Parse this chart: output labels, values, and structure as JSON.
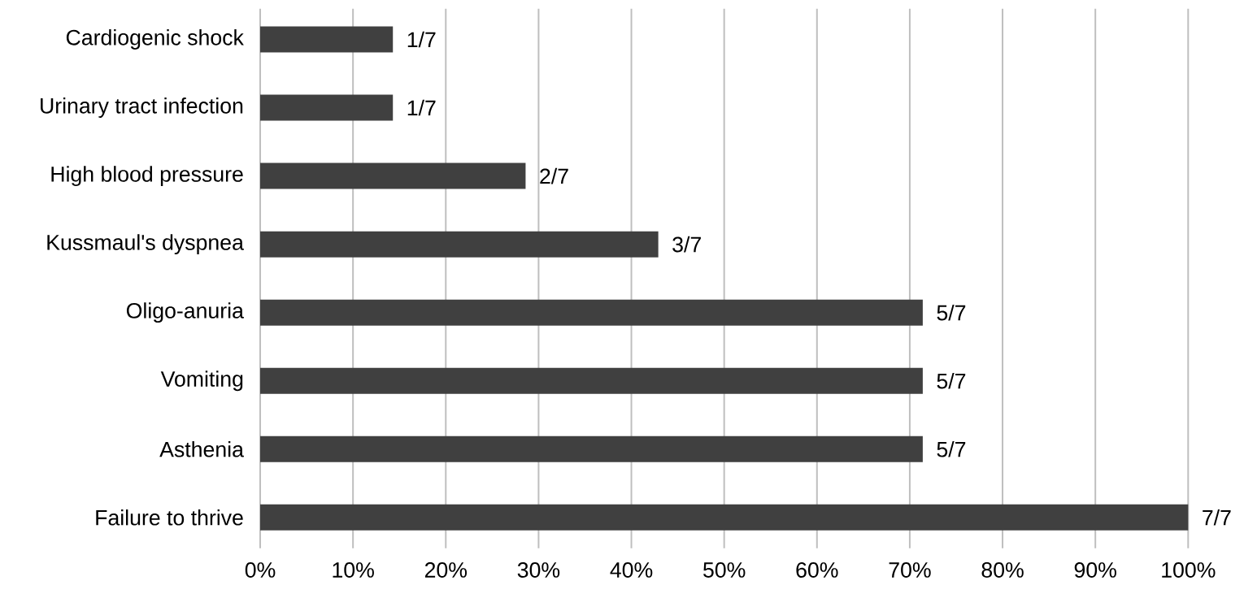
{
  "chart_data": {
    "type": "bar",
    "orientation": "horizontal",
    "categories": [
      "Cardiogenic shock",
      "Urinary tract infection",
      "High blood pressure",
      "Kussmaul's dyspnea",
      "Oligo-anuria",
      "Vomiting",
      "Asthenia",
      "Failure to thrive"
    ],
    "values": [
      14.3,
      14.3,
      28.6,
      42.9,
      71.4,
      71.4,
      71.4,
      100
    ],
    "value_labels": [
      "1/7",
      "1/7",
      "2/7",
      "3/7",
      "5/7",
      "5/7",
      "5/7",
      "7/7"
    ],
    "color": "#404040",
    "xlim": [
      0,
      100
    ],
    "xticks": [
      {
        "value": 0,
        "label": "0%"
      },
      {
        "value": 10,
        "label": "10%"
      },
      {
        "value": 20,
        "label": "20%"
      },
      {
        "value": 30,
        "label": "30%"
      },
      {
        "value": 40,
        "label": "40%"
      },
      {
        "value": 50,
        "label": "50%"
      },
      {
        "value": 60,
        "label": "60%"
      },
      {
        "value": 70,
        "label": "70%"
      },
      {
        "value": 80,
        "label": "80%"
      },
      {
        "value": 90,
        "label": "90%"
      },
      {
        "value": 100,
        "label": "100%"
      }
    ],
    "grid": "x"
  }
}
